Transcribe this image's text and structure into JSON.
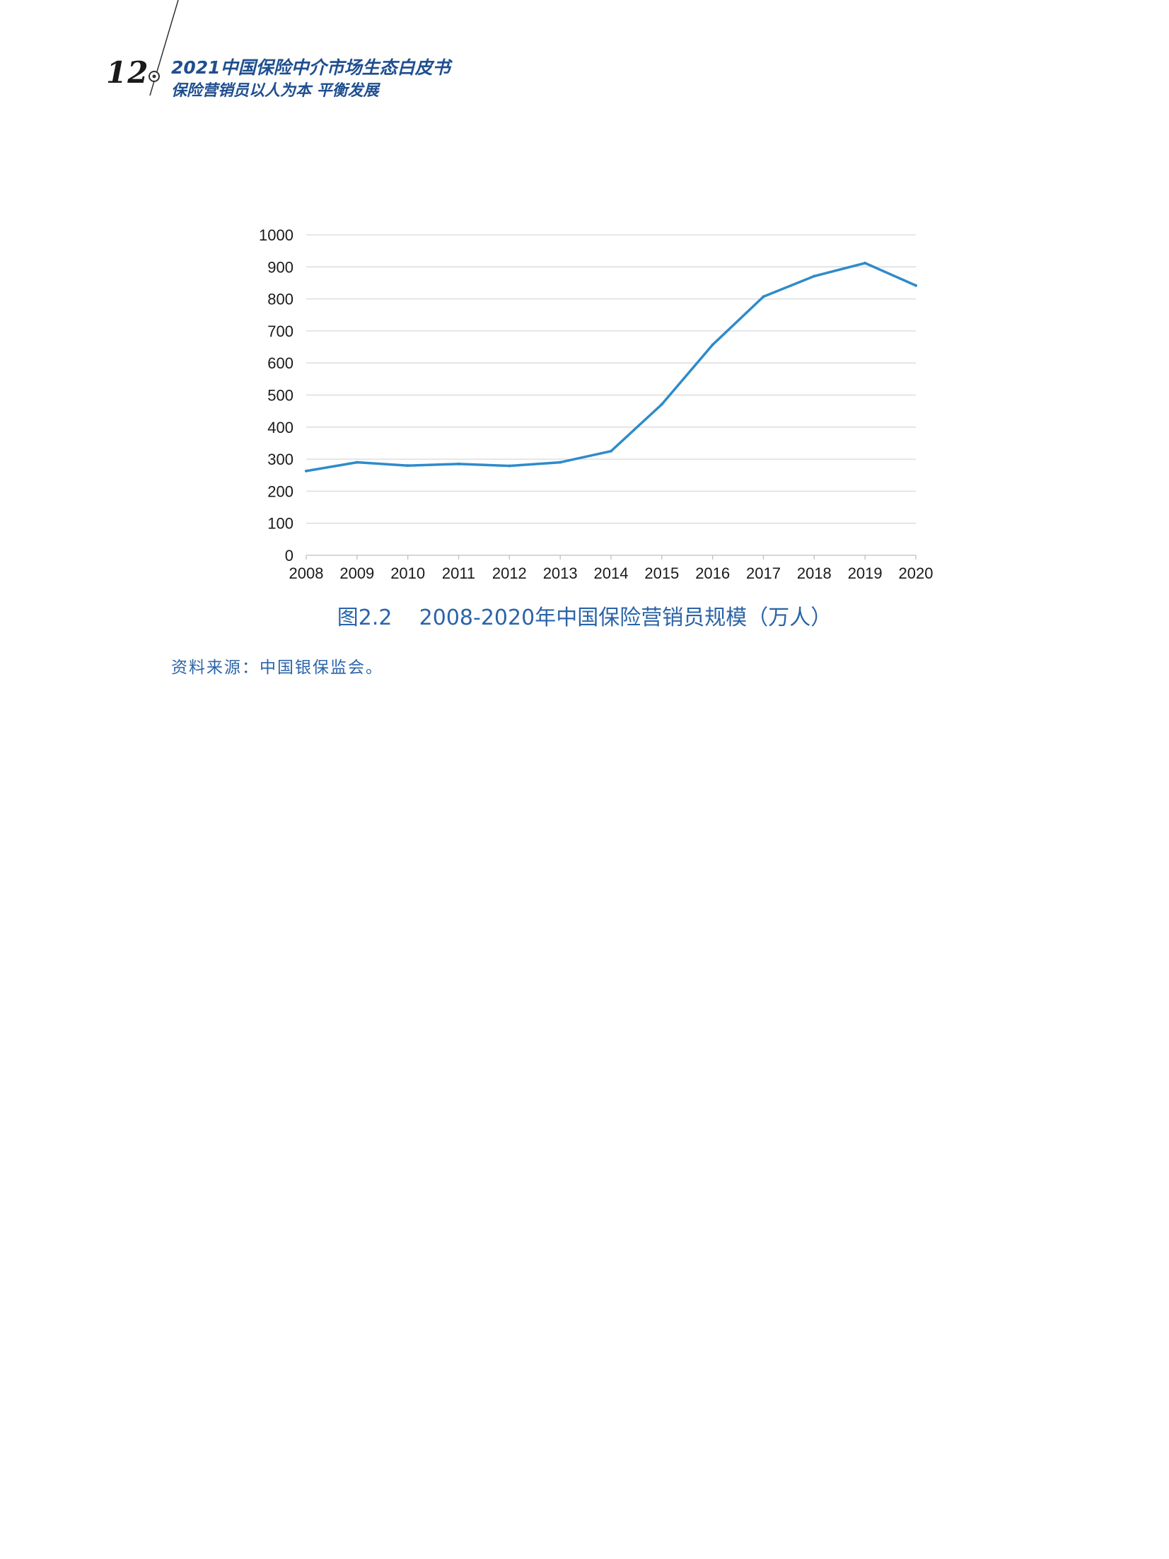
{
  "header": {
    "page_number": "12",
    "title": "2021中国保险中介市场生态白皮书",
    "subtitle": "保险营销员以人为本 平衡发展"
  },
  "figure": {
    "number": "图2.2",
    "caption": "2008-2020年中国保险营销员规模（万人）"
  },
  "source_note": "资料来源：中国银保监会。",
  "colors": {
    "line": "#2e8bc9",
    "header_text": "#1f4f8f",
    "caption_text": "#2b64a8",
    "grid": "#d9d9d9"
  },
  "chart_data": {
    "type": "line",
    "title": "",
    "xlabel": "",
    "ylabel": "",
    "categories": [
      "2008",
      "2009",
      "2010",
      "2011",
      "2012",
      "2013",
      "2014",
      "2015",
      "2016",
      "2017",
      "2018",
      "2019",
      "2020"
    ],
    "values": [
      263,
      290,
      280,
      285,
      279,
      290,
      325,
      471,
      657,
      807,
      871,
      912,
      842
    ],
    "ylim": [
      0,
      1000
    ],
    "yticks": [
      0,
      100,
      200,
      300,
      400,
      500,
      600,
      700,
      800,
      900,
      1000
    ],
    "grid": "horizontal",
    "legend": "none"
  }
}
